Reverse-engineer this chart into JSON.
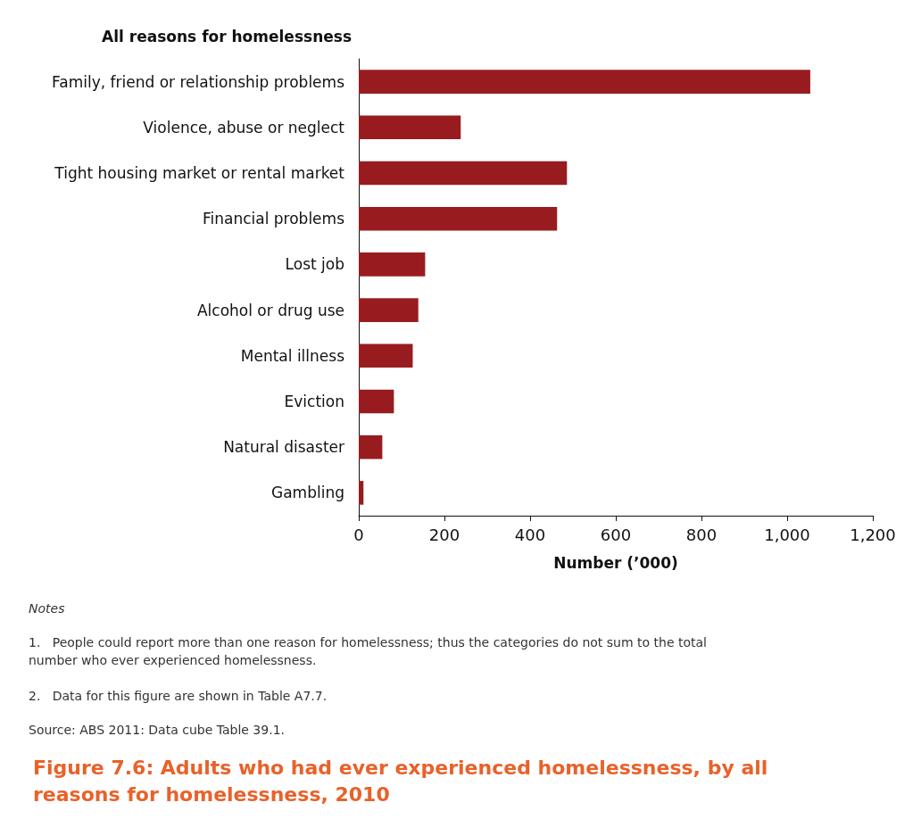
{
  "chart_data": {
    "type": "bar",
    "orientation": "horizontal",
    "title": "Figure 7.6: Adults who had ever experienced homelessness, by all reasons for homelessness, 2010",
    "ylabel": "All reasons for homelessness",
    "xlabel": "Number (’000)",
    "categories": [
      "Family, friend or relationship problems",
      "Violence, abuse or neglect",
      "Tight housing market or rental market",
      "Financial problems",
      "Lost job",
      "Alcohol or drug use",
      "Mental illness",
      "Eviction",
      "Natural disaster",
      "Gambling"
    ],
    "values": [
      1054,
      238,
      486,
      463,
      155,
      139,
      126,
      82,
      55,
      11
    ],
    "color": "#981c1f",
    "xlim": [
      0,
      1200
    ],
    "xticks": [
      0,
      200,
      400,
      600,
      800,
      {
        "value": 1000,
        "label": "1,000"
      },
      {
        "value": 1200,
        "label": "1,200"
      }
    ],
    "grid": false,
    "annotations": [
      "Notes",
      "1.   People could report more than one reason for homelessness; thus the categories do not sum to the total number who ever experienced homelessness.",
      "2.   Data for this figure are shown in Table A7.7.",
      "Source: ABS 2011: Data cube Table 39.1."
    ]
  }
}
